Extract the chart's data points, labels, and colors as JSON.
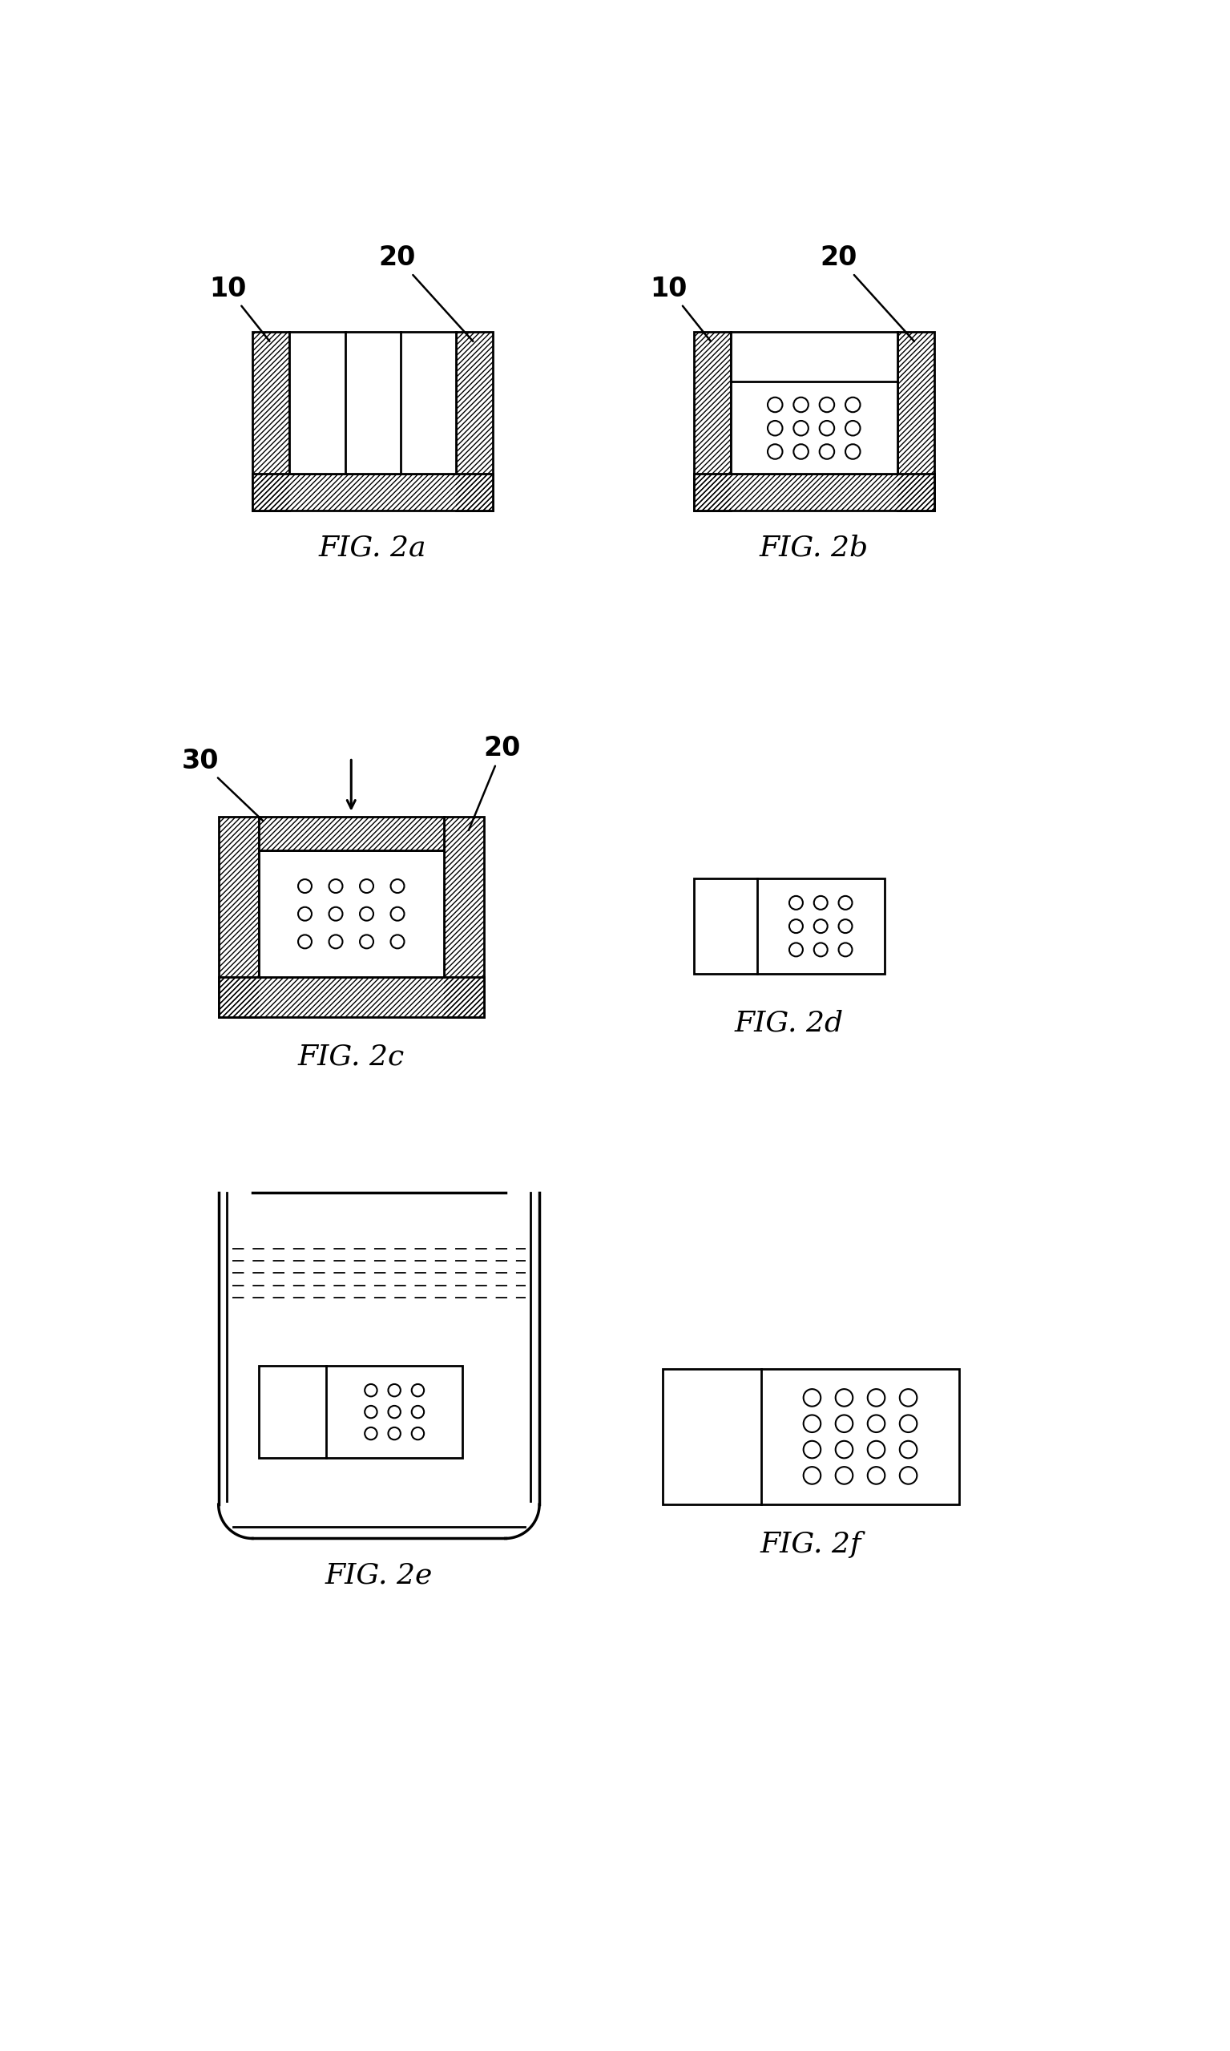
{
  "bg_color": "#ffffff",
  "line_color": "#000000",
  "fig_labels": [
    "FIG. 2a",
    "FIG. 2b",
    "FIG. 2c",
    "FIG. 2d",
    "FIG. 2e",
    "FIG. 2f"
  ],
  "label_fontsize": 26,
  "annotation_fontsize": 24,
  "lw": 2.0
}
